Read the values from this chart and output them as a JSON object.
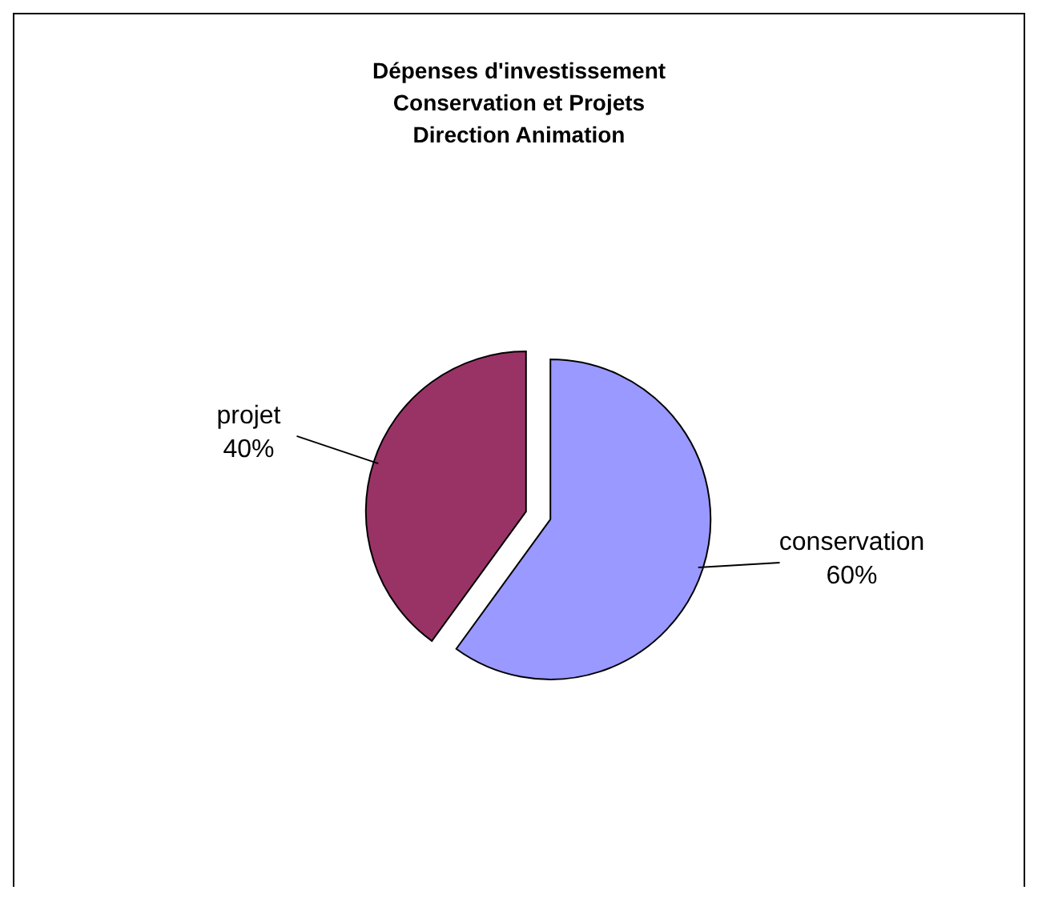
{
  "chart_data": {
    "type": "pie",
    "title": "Dépenses d'investissement\nConservation et Projets\nDirection Animation",
    "categories": [
      "conservation",
      "projet"
    ],
    "values": [
      60,
      40
    ],
    "value_labels": [
      "60%",
      "40%"
    ],
    "colors": [
      "#9999ff",
      "#993366"
    ],
    "legend": false
  }
}
